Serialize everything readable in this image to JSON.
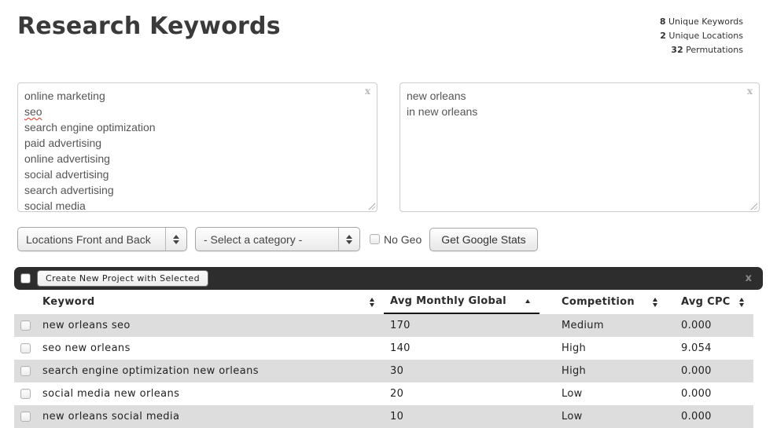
{
  "header": {
    "title": "Research Keywords",
    "stats": [
      {
        "value": "8",
        "label": " Unique Keywords"
      },
      {
        "value": "2",
        "label": " Unique Locations"
      },
      {
        "value": "32",
        "label": " Permutations"
      }
    ]
  },
  "keywords_box": {
    "lines": [
      "online marketing",
      "seo",
      "search engine optimization",
      "paid advertising",
      "online advertising",
      "social advertising",
      "search advertising",
      "social media"
    ],
    "close_label": "x"
  },
  "locations_box": {
    "lines": [
      "new orleans",
      "in new orleans"
    ],
    "close_label": "x"
  },
  "controls": {
    "location_mode_select": "Locations Front and Back",
    "category_select": "- Select a category -",
    "no_geo_label": "No Geo",
    "get_stats_button": "Get Google Stats"
  },
  "action_bar": {
    "create_project_button": "Create New Project with Selected",
    "close_label": "x"
  },
  "table": {
    "columns": [
      "Keyword",
      "Avg Monthly Global",
      "Competition",
      "Avg CPC"
    ],
    "sorted_column": "Avg Monthly Global",
    "sort_direction": "asc",
    "rows": [
      {
        "keyword": "new orleans seo",
        "avg_monthly_global": "170",
        "competition": "Medium",
        "avg_cpc": "0.000"
      },
      {
        "keyword": "seo new orleans",
        "avg_monthly_global": "140",
        "competition": "High",
        "avg_cpc": "9.054"
      },
      {
        "keyword": "search engine optimization new orleans",
        "avg_monthly_global": "30",
        "competition": "High",
        "avg_cpc": "0.000"
      },
      {
        "keyword": "social media new orleans",
        "avg_monthly_global": "20",
        "competition": "Low",
        "avg_cpc": "0.000"
      },
      {
        "keyword": "new orleans social media",
        "avg_monthly_global": "10",
        "competition": "Low",
        "avg_cpc": "0.000"
      }
    ]
  },
  "colors": {
    "row_stripe": "#dddddd",
    "action_bar_bg": "#2d2d2d",
    "spellcheck_underline": "#e0341b",
    "title_text": "#3a3a3a"
  }
}
